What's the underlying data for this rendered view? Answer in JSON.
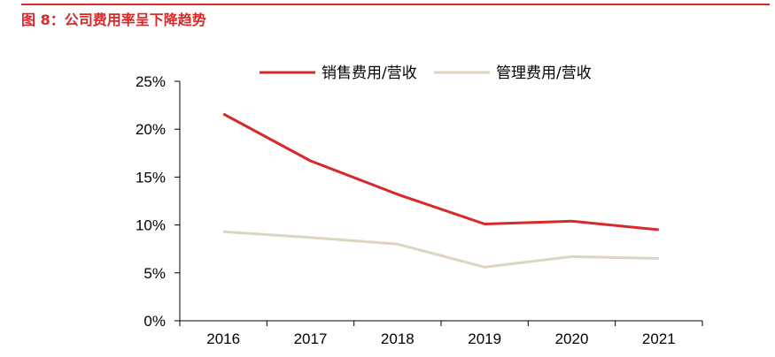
{
  "figure": {
    "title": "图 8：公司费用率呈下降趋势",
    "accent_color": "#d7282a"
  },
  "chart_data": {
    "type": "line",
    "x": [
      "2016",
      "2017",
      "2018",
      "2019",
      "2020",
      "2021"
    ],
    "series": [
      {
        "name": "销售费用/营收",
        "color": "#d7282a",
        "values": [
          21.6,
          16.7,
          13.2,
          10.1,
          10.4,
          9.5
        ]
      },
      {
        "name": "管理费用/营收",
        "color": "#ddd5c2",
        "values": [
          9.3,
          8.7,
          8.0,
          5.6,
          6.7,
          6.5
        ]
      }
    ],
    "ylim": [
      0,
      25
    ],
    "yticks": [
      0,
      5,
      10,
      15,
      20,
      25
    ],
    "ytick_labels": [
      "0%",
      "5%",
      "10%",
      "15%",
      "20%",
      "25%"
    ],
    "grid": false,
    "legend_position": "top"
  }
}
